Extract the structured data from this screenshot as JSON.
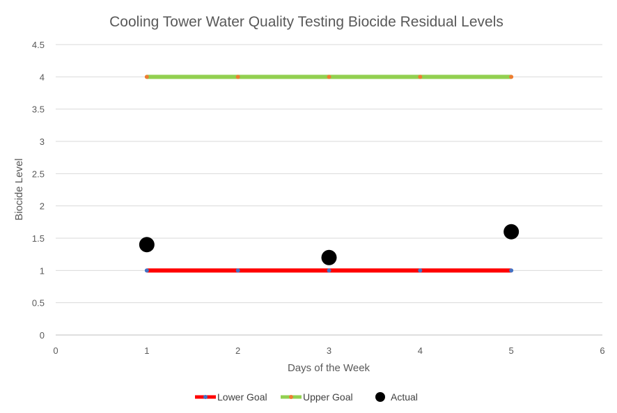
{
  "chart_data": {
    "type": "scatter",
    "title": "Cooling Tower Water Quality Testing Biocide Residual Levels",
    "xlabel": "Days of the Week",
    "ylabel": "Biocide Level",
    "xlim": [
      0,
      6
    ],
    "ylim": [
      0,
      4.5
    ],
    "x_ticks": [
      "0",
      "1",
      "2",
      "3",
      "4",
      "5",
      "6"
    ],
    "y_ticks": [
      "0",
      "0.5",
      "1",
      "1.5",
      "2",
      "2.5",
      "3",
      "3.5",
      "4",
      "4.5"
    ],
    "grid": true,
    "legend_position": "bottom",
    "series": [
      {
        "name": "Lower Goal",
        "mode": "line+markers",
        "line_color": "#ff0000",
        "marker_color": "#4472c4",
        "x": [
          1,
          2,
          3,
          4,
          5
        ],
        "y": [
          1,
          1,
          1,
          1,
          1
        ]
      },
      {
        "name": "Upper Goal",
        "mode": "line+markers",
        "line_color": "#92d050",
        "marker_color": "#ed7d31",
        "x": [
          1,
          2,
          3,
          4,
          5
        ],
        "y": [
          4,
          4,
          4,
          4,
          4
        ]
      },
      {
        "name": "Actual",
        "mode": "markers",
        "marker_color": "#000000",
        "x": [
          1,
          3,
          5
        ],
        "y": [
          1.4,
          1.2,
          1.6
        ]
      }
    ]
  }
}
